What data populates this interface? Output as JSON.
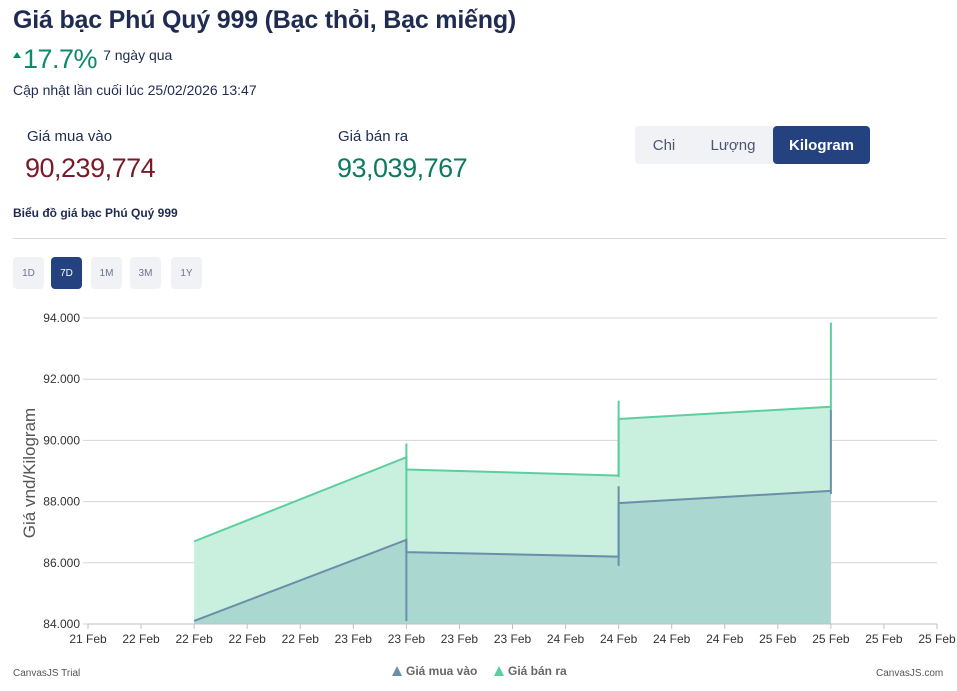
{
  "header": {
    "title": "Giá bạc Phú Quý 999 (Bạc thỏi, Bạc miếng)",
    "change_percent": "17.7%",
    "change_period": "7 ngày qua",
    "updated": "Cập nhật lần cuối lúc 25/02/2026 13:47"
  },
  "prices": {
    "buy_label": "Giá mua vào",
    "buy_value": "90,239,774",
    "sell_label": "Giá bán ra",
    "sell_value": "93,039,767"
  },
  "units": [
    {
      "label": "Chi",
      "active": false
    },
    {
      "label": "Lượng",
      "active": false
    },
    {
      "label": "Kilogram",
      "active": true
    }
  ],
  "chart_heading": "Biểu đồ giá bạc Phú Quý 999",
  "ranges": [
    {
      "label": "1D",
      "active": false
    },
    {
      "label": "7D",
      "active": true
    },
    {
      "label": "1M",
      "active": false
    },
    {
      "label": "3M",
      "active": false
    },
    {
      "label": "1Y",
      "active": false
    }
  ],
  "colors": {
    "buy_line": "#6a8fa8",
    "buy_fill": "#a9d5cf",
    "sell_line": "#5ccf9e",
    "sell_fill": "#c9efdf",
    "grid": "#d3d6dc",
    "accent": "#24427f"
  },
  "chart_data": {
    "type": "area",
    "ylabel": "Giá vnd/Kilogram",
    "ylim": [
      84000,
      94000
    ],
    "yticks": [
      "84.000",
      "86.000",
      "88.000",
      "90.000",
      "92.000",
      "94.000"
    ],
    "xticks": [
      "21 Feb",
      "22 Feb",
      "22 Feb",
      "22 Feb",
      "22 Feb",
      "23 Feb",
      "23 Feb",
      "23 Feb",
      "23 Feb",
      "24 Feb",
      "24 Feb",
      "24 Feb",
      "24 Feb",
      "25 Feb",
      "25 Feb",
      "25 Feb",
      "25 Feb"
    ],
    "legend_position": "bottom-center",
    "grid": true,
    "series": [
      {
        "name": "Giá mua vào",
        "points": [
          {
            "x": 2.0,
            "y": 84100
          },
          {
            "x": 6.0,
            "y": 86750
          },
          {
            "x": 6.0,
            "y": 86350
          },
          {
            "x": 10.0,
            "y": 86200
          },
          {
            "x": 10.0,
            "y": 87950
          },
          {
            "x": 14.0,
            "y": 88350
          }
        ],
        "whiskers": [
          {
            "x": 6.0,
            "low": 84100,
            "high": 86700
          },
          {
            "x": 10.0,
            "low": 85900,
            "high": 88500
          },
          {
            "x": 14.0,
            "low": 88250,
            "high": 91000
          }
        ]
      },
      {
        "name": "Giá bán ra",
        "points": [
          {
            "x": 2.0,
            "y": 86700
          },
          {
            "x": 6.0,
            "y": 89450
          },
          {
            "x": 6.0,
            "y": 89050
          },
          {
            "x": 10.0,
            "y": 88850
          },
          {
            "x": 10.0,
            "y": 90700
          },
          {
            "x": 14.0,
            "y": 91100
          }
        ],
        "whiskers": [
          {
            "x": 6.0,
            "low": 86700,
            "high": 89900
          },
          {
            "x": 10.0,
            "low": 88800,
            "high": 91300
          },
          {
            "x": 14.0,
            "low": 91000,
            "high": 93850
          }
        ]
      }
    ]
  },
  "footer": {
    "watermark_left": "CanvasJS Trial",
    "watermark_right": "CanvasJS.com"
  }
}
